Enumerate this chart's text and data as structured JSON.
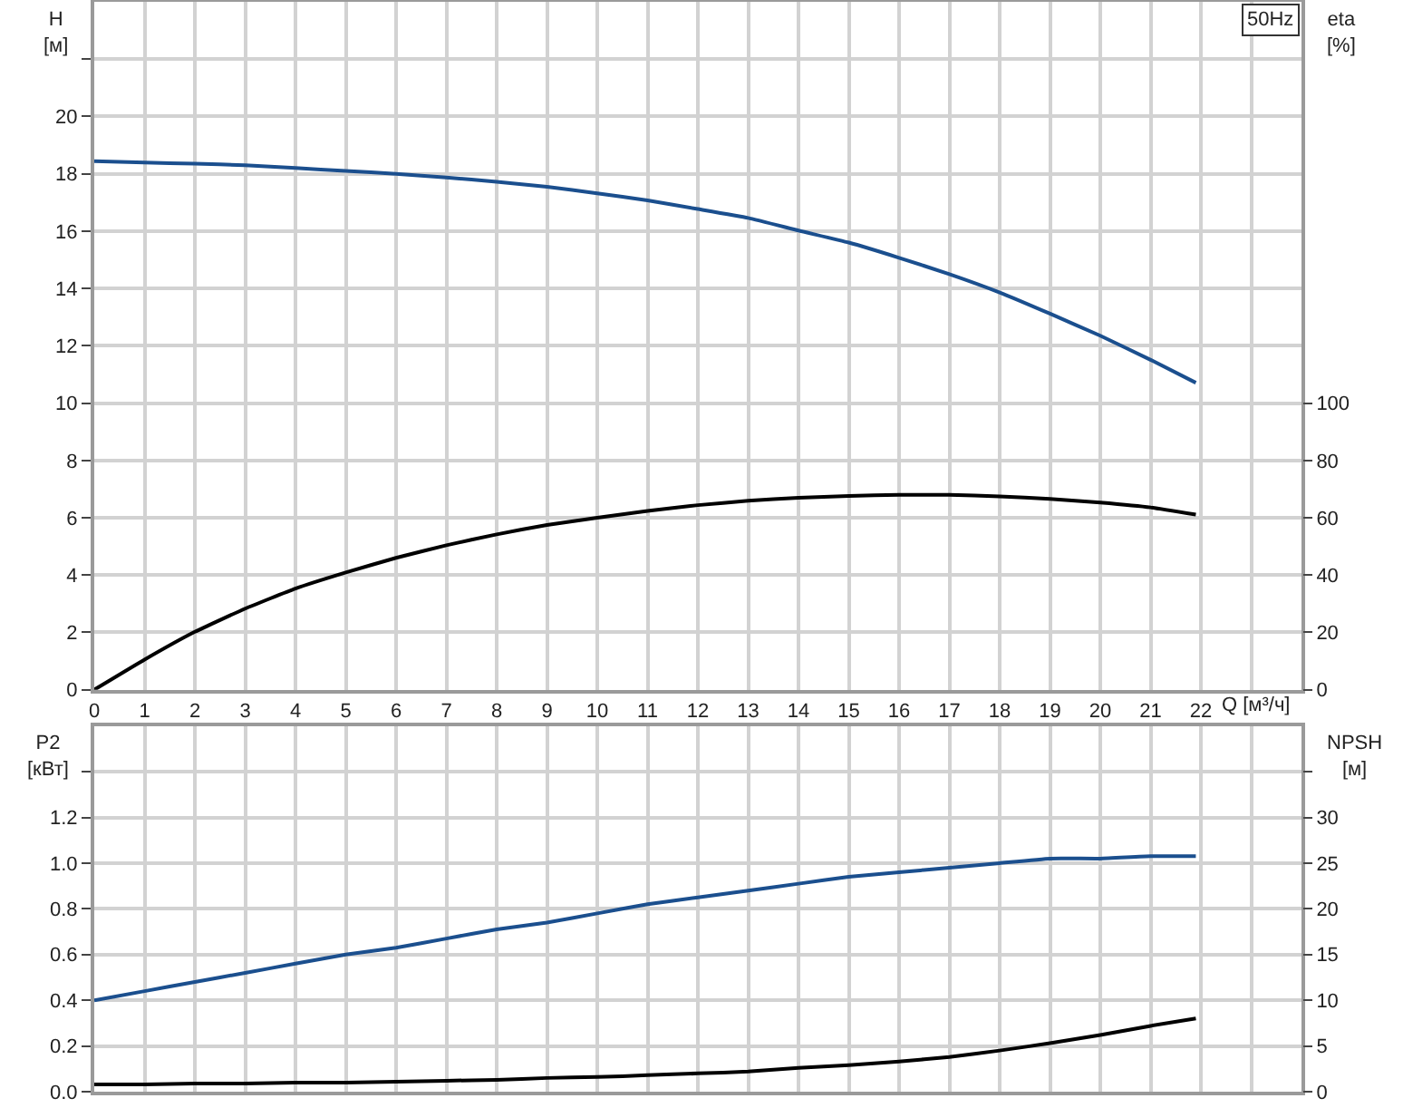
{
  "chart_data": [
    {
      "type": "line",
      "x": [
        0,
        1,
        2,
        3,
        4,
        5,
        6,
        7,
        8,
        9,
        10,
        11,
        12,
        13,
        14,
        15,
        16,
        17,
        18,
        19,
        20,
        21,
        21.9
      ],
      "xlim": [
        0,
        24
      ],
      "xticks": [
        0,
        1,
        2,
        3,
        4,
        5,
        6,
        7,
        8,
        9,
        10,
        11,
        12,
        13,
        14,
        15,
        16,
        17,
        18,
        19,
        20,
        21,
        22,
        {
          "value": 23,
          "label": null
        }
      ],
      "xlabel": "Q [м³/ч]",
      "ylim": [
        0,
        24
      ],
      "yticks": [
        0,
        2,
        4,
        6,
        8,
        10,
        12,
        14,
        16,
        18,
        20,
        {
          "value": 22,
          "label": null
        }
      ],
      "ylabel": "H\n[м]",
      "y2lim": [
        0,
        240
      ],
      "y2ticks": [
        0,
        20,
        40,
        60,
        80,
        100
      ],
      "y2label": "eta\n[%]",
      "grid": true,
      "annotations": [
        "50Hz"
      ],
      "series": [
        {
          "color": "#1b4f8e",
          "values": [
            18.44,
            18.39,
            18.35,
            18.3,
            18.2,
            18.1,
            18.0,
            17.87,
            17.72,
            17.55,
            17.32,
            17.07,
            16.77,
            16.46,
            16.02,
            15.6,
            15.07,
            14.5,
            13.86,
            13.12,
            12.35,
            11.51,
            10.71
          ]
        },
        {
          "color": "#000000",
          "axis": "y2",
          "values": [
            0,
            10.5,
            20.2,
            28.3,
            35.3,
            40.9,
            46.0,
            50.4,
            54.2,
            57.5,
            60.0,
            62.4,
            64.4,
            65.9,
            67.0,
            67.6,
            68.0,
            68.0,
            67.4,
            66.6,
            65.3,
            63.6,
            61.1
          ]
        }
      ]
    },
    {
      "type": "line",
      "x": [
        0,
        1,
        2,
        3,
        4,
        5,
        6,
        7,
        8,
        9,
        10,
        11,
        12,
        13,
        14,
        15,
        16,
        17,
        18,
        19,
        20,
        21,
        21.9
      ],
      "xlim": [
        0,
        24
      ],
      "xticks": [
        0,
        1,
        2,
        3,
        4,
        5,
        6,
        7,
        8,
        9,
        10,
        11,
        12,
        13,
        14,
        15,
        16,
        17,
        18,
        19,
        20,
        21,
        22,
        23
      ],
      "tick_labels": "y",
      "ylim": [
        0,
        1.6
      ],
      "yticks": [
        {
          "value": 0,
          "label": "0.0"
        },
        0.2,
        0.4,
        0.6,
        0.8,
        {
          "value": 1,
          "label": "1.0"
        },
        1.2,
        {
          "value": 1.4,
          "label": null
        }
      ],
      "ylabel": "P2\n[кВт]",
      "y2lim": [
        0,
        40
      ],
      "y2ticks": [
        0,
        5,
        10,
        15,
        20,
        25,
        30,
        {
          "value": 35,
          "label": null
        }
      ],
      "y2label": "NPSH\n[м]",
      "grid": true,
      "series": [
        {
          "color": "#1b4f8e",
          "values": [
            0.4,
            0.44,
            0.48,
            0.52,
            0.56,
            0.6,
            0.63,
            0.67,
            0.71,
            0.74,
            0.78,
            0.82,
            0.85,
            0.88,
            0.91,
            0.94,
            0.96,
            0.98,
            1.0,
            1.02,
            1.02,
            1.03,
            1.03
          ]
        },
        {
          "color": "#000000",
          "axis": "y2",
          "values": [
            0.8,
            0.8,
            0.9,
            0.9,
            1.0,
            1.0,
            1.1,
            1.2,
            1.3,
            1.5,
            1.6,
            1.8,
            2.0,
            2.2,
            2.6,
            2.9,
            3.3,
            3.8,
            4.5,
            5.3,
            6.2,
            7.2,
            8.0
          ]
        }
      ]
    }
  ]
}
